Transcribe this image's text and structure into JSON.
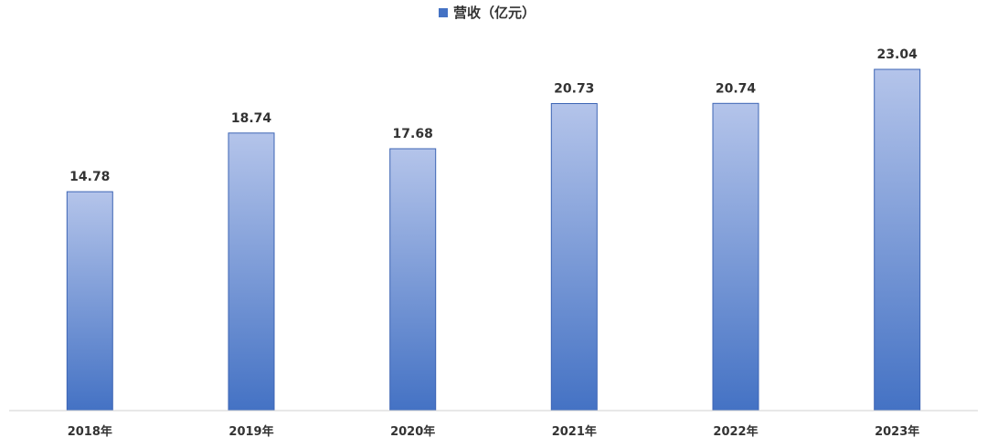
{
  "chart_data": {
    "type": "bar",
    "categories": [
      "2018年",
      "2019年",
      "2020年",
      "2021年",
      "2022年",
      "2023年"
    ],
    "series": [
      {
        "name": "营收（亿元）",
        "values": [
          14.78,
          18.74,
          17.68,
          20.73,
          20.74,
          23.04
        ]
      }
    ],
    "value_labels": [
      "14.78",
      "18.74",
      "17.68",
      "20.73",
      "20.74",
      "23.04"
    ],
    "ylim": [
      0,
      23.04
    ],
    "legend_position": "top-center",
    "grid": false,
    "colors": {
      "bar_top": "#b4c4ea",
      "bar_bottom": "#4472c4",
      "bar_stroke": "#3c64b4",
      "axis": "#d0d0d0",
      "text": "#333333"
    }
  }
}
